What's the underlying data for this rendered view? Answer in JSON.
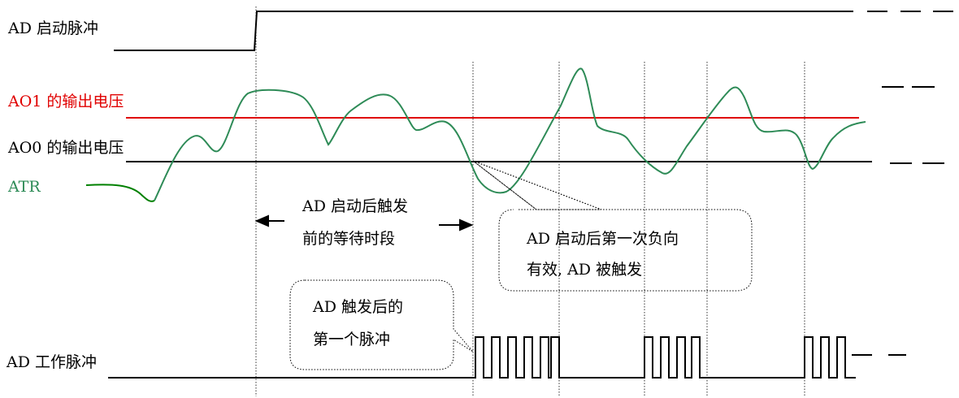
{
  "labels": {
    "ad_start_pulse": "AD 启动脉冲",
    "ao1_voltage": "AO1 的输出电压",
    "ao0_voltage": "AO0 的输出电压",
    "atr": "ATR",
    "ad_work_pulse": "AD 工作脉冲"
  },
  "annotations": {
    "wait_period_line1": "AD 启动后触发",
    "wait_period_line2": "前的等待时段",
    "trigger_line1": "AD  启动后第一次负向",
    "trigger_line2": "有效, AD 被触发",
    "first_pulse_line1": "AD  触发后的",
    "first_pulse_line2": "第一个脉冲"
  },
  "colors": {
    "ao1_line": "#e00000",
    "atr_curve": "#2e8b57",
    "line": "#000000"
  }
}
